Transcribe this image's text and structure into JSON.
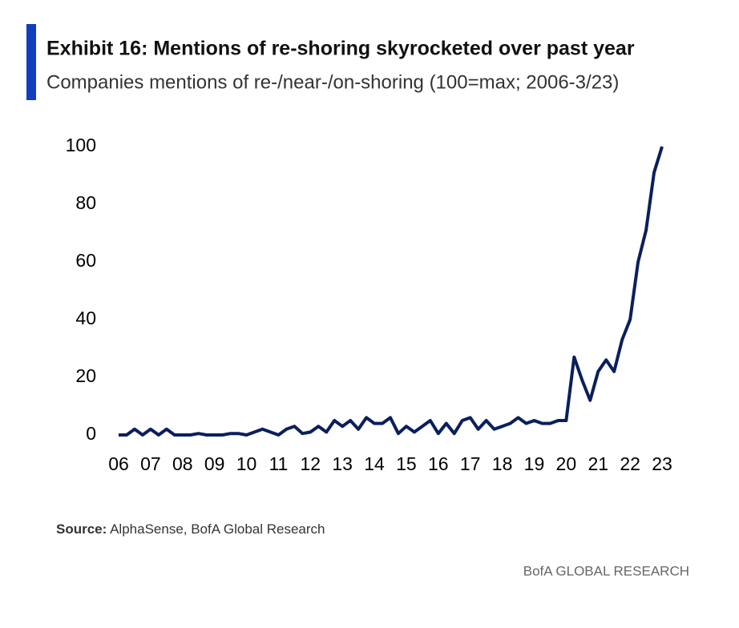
{
  "chart_data": {
    "type": "line",
    "title": "Exhibit 16: Mentions of re-shoring skyrocketed over past year",
    "subtitle": "Companies mentions of re-/near-/on-shoring (100=max; 2006-3/23)",
    "x": [
      2006,
      2006.25,
      2006.5,
      2006.75,
      2007,
      2007.25,
      2007.5,
      2007.75,
      2008,
      2008.25,
      2008.5,
      2008.75,
      2009,
      2009.25,
      2009.5,
      2009.75,
      2010,
      2010.25,
      2010.5,
      2010.75,
      2011,
      2011.25,
      2011.5,
      2011.75,
      2012,
      2012.25,
      2012.5,
      2012.75,
      2013,
      2013.25,
      2013.5,
      2013.75,
      2014,
      2014.25,
      2014.5,
      2014.75,
      2015,
      2015.25,
      2015.5,
      2015.75,
      2016,
      2016.25,
      2016.5,
      2016.75,
      2017,
      2017.25,
      2017.5,
      2017.75,
      2018,
      2018.25,
      2018.5,
      2018.75,
      2019,
      2019.25,
      2019.5,
      2019.75,
      2020,
      2020.25,
      2020.5,
      2020.75,
      2021,
      2021.25,
      2021.5,
      2021.75,
      2022,
      2022.25,
      2022.5,
      2022.75,
      2023
    ],
    "series": [
      {
        "name": "Mentions",
        "color": "#0a1f5c",
        "values": [
          0,
          0,
          2,
          0,
          2,
          0,
          2,
          0,
          0,
          0,
          0.5,
          0,
          0,
          0,
          0.5,
          0.5,
          0,
          1,
          2,
          1,
          0,
          2,
          3,
          0.5,
          1,
          3,
          1,
          5,
          3,
          5,
          2,
          6,
          4,
          4,
          6,
          0.5,
          3,
          1,
          3,
          5,
          0.5,
          4,
          0.5,
          5,
          6,
          2,
          5,
          2,
          3,
          4,
          6,
          4,
          5,
          4,
          4,
          5,
          5,
          27,
          19,
          12,
          22,
          26,
          22,
          33,
          40,
          60,
          71,
          91,
          100
        ]
      }
    ],
    "xlim": [
      2006,
      2023
    ],
    "xticks": [
      {
        "value": 2006,
        "label": "06"
      },
      {
        "value": 2007,
        "label": "07"
      },
      {
        "value": 2008,
        "label": "08"
      },
      {
        "value": 2009,
        "label": "09"
      },
      {
        "value": 2010,
        "label": "10"
      },
      {
        "value": 2011,
        "label": "11"
      },
      {
        "value": 2012,
        "label": "12"
      },
      {
        "value": 2013,
        "label": "13"
      },
      {
        "value": 2014,
        "label": "14"
      },
      {
        "value": 2015,
        "label": "15"
      },
      {
        "value": 2016,
        "label": "16"
      },
      {
        "value": 2017,
        "label": "17"
      },
      {
        "value": 2018,
        "label": "18"
      },
      {
        "value": 2019,
        "label": "19"
      },
      {
        "value": 2020,
        "label": "20"
      },
      {
        "value": 2021,
        "label": "21"
      },
      {
        "value": 2022,
        "label": "22"
      },
      {
        "value": 2023,
        "label": "23"
      }
    ],
    "ylim": [
      0,
      100
    ],
    "yticks": [
      0,
      20,
      40,
      60,
      80,
      100
    ],
    "grid": false,
    "source": {
      "label": "Source:",
      "text": "AlphaSense, BofA Global Research"
    },
    "footer": "BofA GLOBAL RESEARCH"
  }
}
